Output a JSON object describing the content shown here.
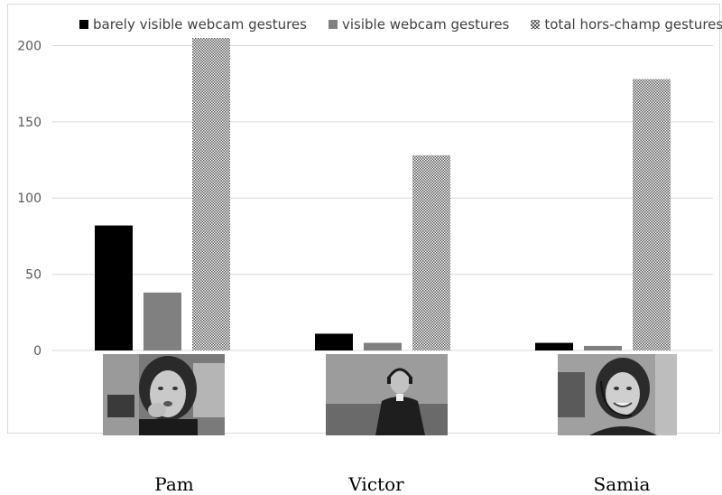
{
  "chart_data": {
    "type": "bar",
    "categories": [
      "Pam",
      "Victor",
      "Samia"
    ],
    "series": [
      {
        "name": "barely visible webcam gestures",
        "values": [
          82,
          11,
          5
        ],
        "color": "#000000",
        "fill": "solid"
      },
      {
        "name": "visible webcam gestures",
        "values": [
          38,
          5,
          3
        ],
        "color": "#808080",
        "fill": "solid"
      },
      {
        "name": "total hors-champ gestures",
        "values": [
          205,
          128,
          178
        ],
        "color": "#555555",
        "fill": "checker"
      }
    ],
    "ylim": [
      0,
      205
    ],
    "yticks": [
      0,
      50,
      100,
      150,
      200
    ],
    "legend_position": "top",
    "grid": true,
    "xlabel": "",
    "ylabel": "",
    "title": ""
  },
  "people": [
    {
      "name": "Pam",
      "photo": "webcam-photo-pam"
    },
    {
      "name": "Victor",
      "photo": "webcam-photo-victor"
    },
    {
      "name": "Samia",
      "photo": "webcam-photo-samia"
    }
  ]
}
